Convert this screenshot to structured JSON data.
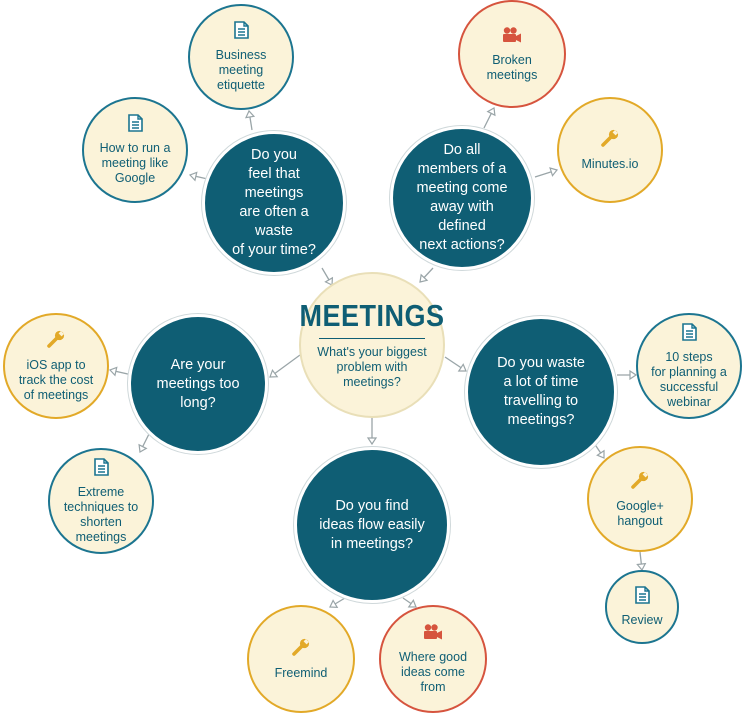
{
  "colors": {
    "question_fill": "#0f5e74",
    "resource_fill": "#fbf3d9",
    "blue_ring": "#1c7590",
    "gold_ring": "#e2a928",
    "red_ring": "#d6543e"
  },
  "center": {
    "title": "MEETINGS",
    "subtitle": "What's your biggest\nproblem with\nmeetings?"
  },
  "questions": [
    {
      "id": "waste",
      "text": "Do you\nfeel that meetings\nare often a waste\nof your time?"
    },
    {
      "id": "actions",
      "text": "Do all\nmembers of a\nmeeting come\naway with defined\nnext actions?"
    },
    {
      "id": "long",
      "text": "Are your\nmeetings too\nlong?"
    },
    {
      "id": "travel",
      "text": "Do you waste\na lot of time\ntravelling to\nmeetings?"
    },
    {
      "id": "ideas",
      "text": "Do you find\nideas flow easily\nin meetings?"
    }
  ],
  "resources": [
    {
      "id": "etiquette",
      "label": "Business\nmeeting\netiquette",
      "icon": "document-icon",
      "ring": "blue"
    },
    {
      "id": "google",
      "label": "How to run a\nmeeting like\nGoogle",
      "icon": "document-icon",
      "ring": "blue"
    },
    {
      "id": "broken",
      "label": "Broken\nmeetings",
      "icon": "video-camera-icon",
      "ring": "red"
    },
    {
      "id": "minutes",
      "label": "Minutes.io",
      "icon": "wrench-icon",
      "ring": "gold"
    },
    {
      "id": "ios",
      "label": "iOS app to\ntrack the cost\nof meetings",
      "icon": "wrench-icon",
      "ring": "gold"
    },
    {
      "id": "extreme",
      "label": "Extreme\ntechniques to\nshorten\nmeetings",
      "icon": "document-icon",
      "ring": "blue"
    },
    {
      "id": "webinar",
      "label": "10 steps\nfor planning a\nsuccessful\nwebinar",
      "icon": "document-icon",
      "ring": "blue"
    },
    {
      "id": "hangout",
      "label": "Google+\nhangout",
      "icon": "wrench-icon",
      "ring": "gold"
    },
    {
      "id": "review",
      "label": "Review",
      "icon": "document-icon",
      "ring": "blue"
    },
    {
      "id": "freemind",
      "label": "Freemind",
      "icon": "wrench-icon",
      "ring": "gold"
    },
    {
      "id": "where",
      "label": "Where good\nideas come\nfrom",
      "icon": "video-camera-icon",
      "ring": "red"
    }
  ]
}
